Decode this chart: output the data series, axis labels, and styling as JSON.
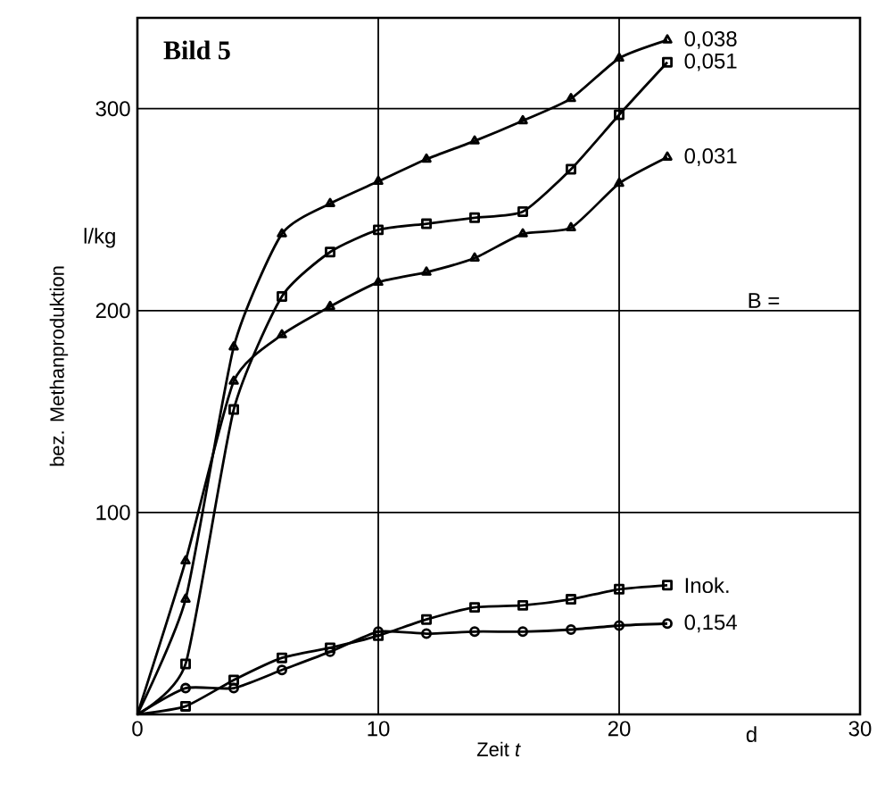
{
  "chart_data": {
    "type": "line",
    "title": "Bild 5",
    "xlabel": "Zeit *t*",
    "ylabel": "bez. Methanproduktion",
    "annotations": [
      "l/kg",
      "d",
      "B ="
    ],
    "x": [
      0,
      2,
      4,
      6,
      8,
      10,
      12,
      14,
      16,
      18,
      20,
      22
    ],
    "series": [
      {
        "name": "0,038",
        "color": "#000000",
        "marker": "triangle",
        "values": [
          0,
          57,
          182,
          238,
          253,
          264,
          275,
          284,
          294,
          305,
          325,
          334
        ]
      },
      {
        "name": "0,051",
        "color": "#000000",
        "marker": "square",
        "values": [
          0,
          25,
          151,
          207,
          229,
          240,
          243,
          246,
          249,
          270,
          297,
          323
        ]
      },
      {
        "name": "0,031",
        "color": "#000000",
        "marker": "triangle",
        "values": [
          0,
          76,
          165,
          188,
          202,
          214,
          219,
          226,
          238,
          241,
          263,
          276
        ]
      },
      {
        "name": "Inok.",
        "color": "#000000",
        "marker": "square",
        "values": [
          0,
          4,
          17,
          28,
          33,
          39,
          47,
          53,
          54,
          57,
          62,
          64
        ]
      },
      {
        "name": "0,154",
        "color": "#000000",
        "marker": "circle",
        "values": [
          0,
          13,
          13,
          22,
          31,
          41,
          40,
          41,
          41,
          42,
          44,
          45
        ]
      }
    ],
    "xlim": [
      0,
      30
    ],
    "xticks": [
      0,
      10,
      20,
      30
    ],
    "ylim": [
      0,
      345
    ],
    "yticks": [
      {
        "value": 0,
        "label": null
      },
      100,
      200,
      300
    ],
    "grid": true,
    "legend": false,
    "line_style": "solid"
  }
}
